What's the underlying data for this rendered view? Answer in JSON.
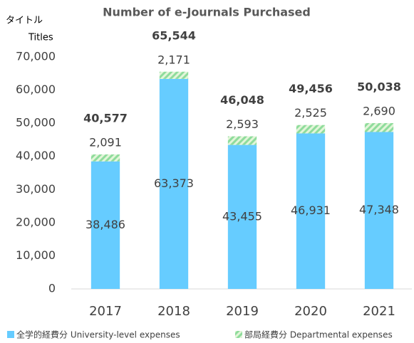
{
  "chart_data": {
    "type": "stacked_bar",
    "title": "Number of e-Journals Purchased",
    "y_label": "タイトル",
    "y_unit": "Titles",
    "categories": [
      "2017",
      "2018",
      "2019",
      "2020",
      "2021"
    ],
    "series": [
      {
        "name": "全学的経費分 University-level expenses",
        "color": "#66ccff",
        "values": [
          38486,
          63373,
          43455,
          46931,
          47348
        ],
        "value_labels": [
          "38,486",
          "63,373",
          "43,455",
          "46,931",
          "47,348"
        ]
      },
      {
        "name": "部局経費分 Departmental expenses",
        "color": "#92d050",
        "values": [
          2091,
          2171,
          2593,
          2525,
          2690
        ],
        "value_labels": [
          "2,091",
          "2,171",
          "2,593",
          "2,525",
          "2,690"
        ]
      }
    ],
    "totals": {
      "values": [
        40577,
        65544,
        46048,
        49456,
        50038
      ],
      "value_labels": [
        "40,577",
        "65,544",
        "46,048",
        "49,456",
        "50,038"
      ]
    },
    "ylim": [
      0,
      70000
    ],
    "yticks": [
      0,
      {
        "value": 10000,
        "label": "10,000"
      },
      {
        "value": 20000,
        "label": "20,000"
      },
      {
        "value": 30000,
        "label": "30,000"
      },
      {
        "value": 40000,
        "label": "40,000"
      },
      {
        "value": 50000,
        "label": "50,000"
      },
      {
        "value": 60000,
        "label": "60,000"
      },
      {
        "value": 70000,
        "label": "70,000"
      }
    ],
    "grid": false,
    "legend": "bottom"
  }
}
